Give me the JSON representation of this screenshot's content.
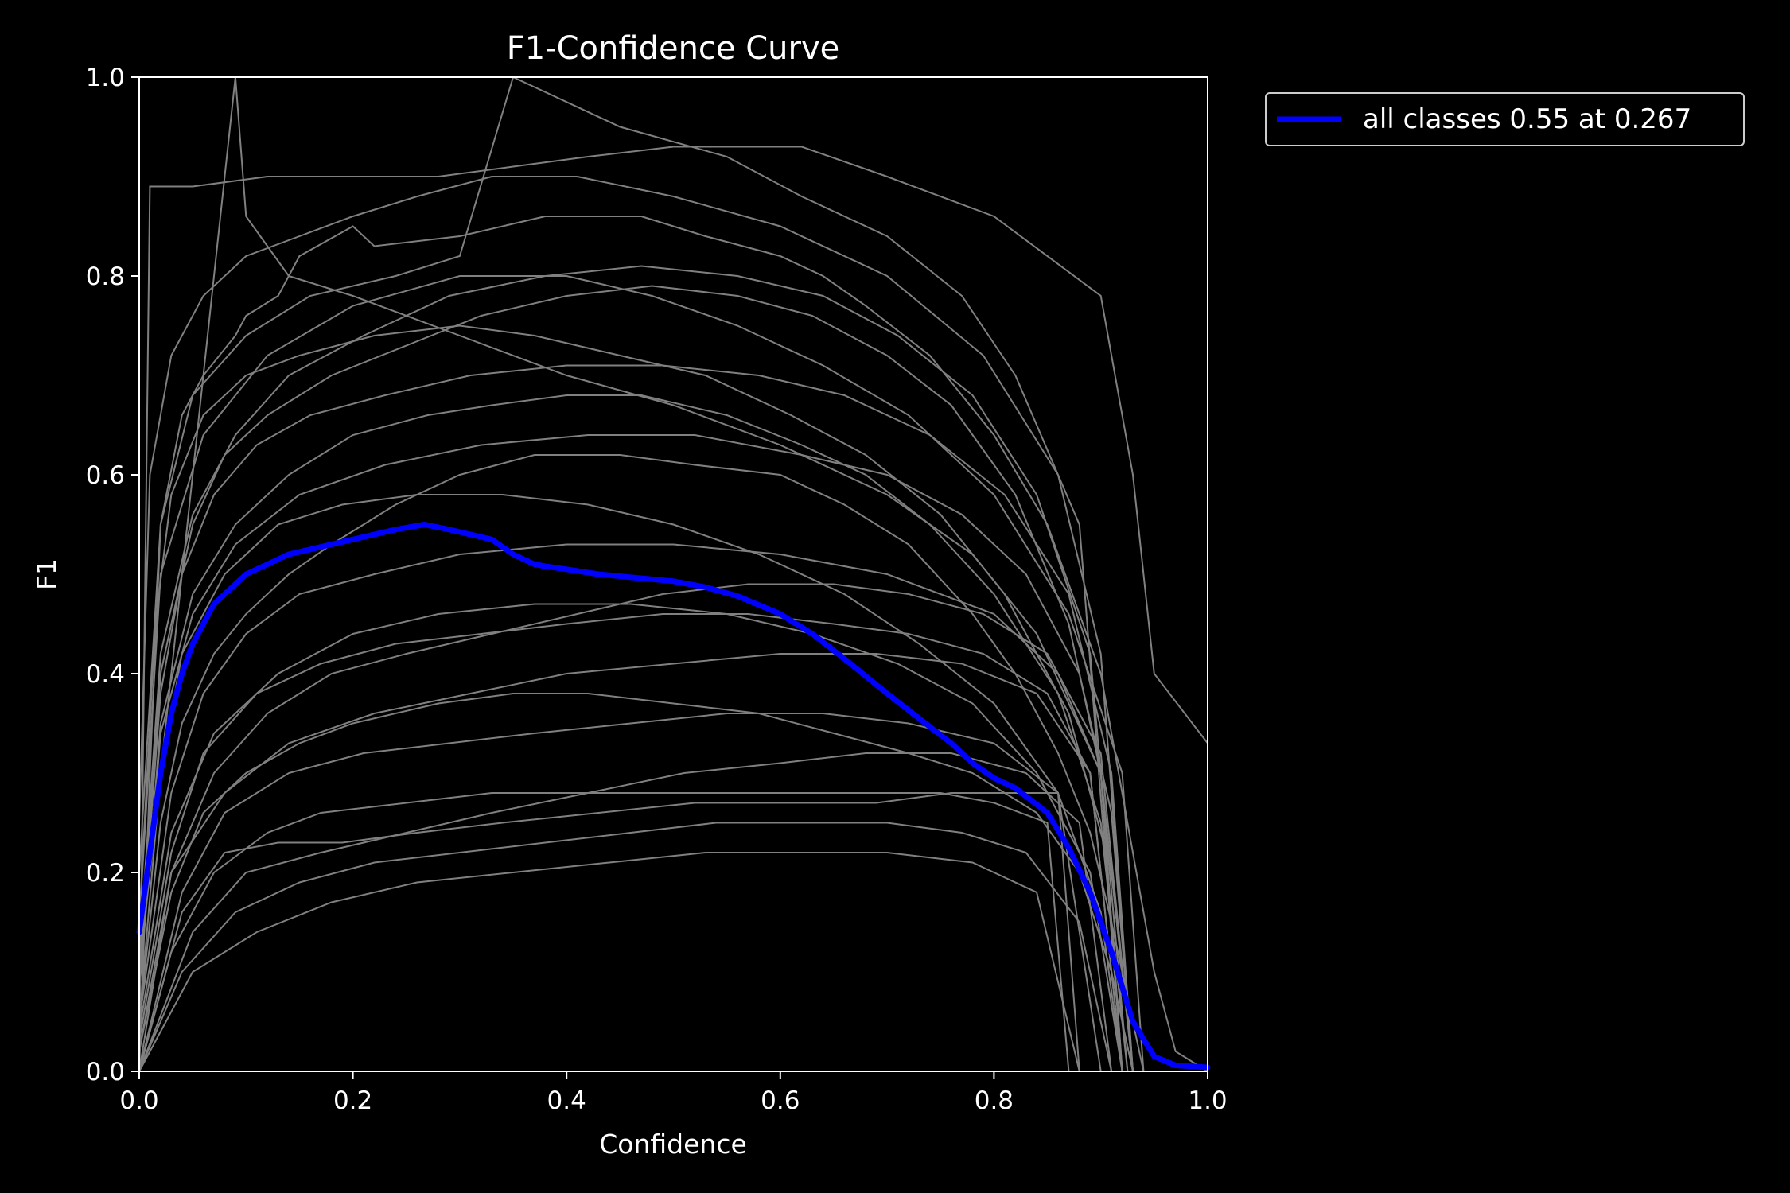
{
  "chart_data": {
    "type": "line",
    "title": "F1-Confidence Curve",
    "xlabel": "Confidence",
    "ylabel": "F1",
    "xlim": [
      0,
      1
    ],
    "ylim": [
      0,
      1
    ],
    "x_ticks": [
      "0.0",
      "0.2",
      "0.4",
      "0.6",
      "0.8",
      "1.0"
    ],
    "y_ticks": [
      "0.0",
      "0.2",
      "0.4",
      "0.6",
      "0.8",
      "1.0"
    ],
    "grid": false,
    "legend_position": "outside-top-right",
    "colors": {
      "background": "#000000",
      "axes": "#ffffff",
      "class_curves": "#808080",
      "all_classes": "#0000ff"
    },
    "series": [
      {
        "name": "all classes 0.55 at 0.267",
        "color": "#0000ff",
        "x": [
          0.0,
          0.01,
          0.02,
          0.03,
          0.04,
          0.05,
          0.06,
          0.07,
          0.08,
          0.09,
          0.1,
          0.12,
          0.14,
          0.16,
          0.18,
          0.2,
          0.22,
          0.24,
          0.267,
          0.29,
          0.31,
          0.33,
          0.35,
          0.37,
          0.38,
          0.4,
          0.43,
          0.46,
          0.5,
          0.53,
          0.56,
          0.6,
          0.63,
          0.66,
          0.7,
          0.73,
          0.76,
          0.78,
          0.8,
          0.82,
          0.85,
          0.87,
          0.89,
          0.91,
          0.93,
          0.95,
          0.97,
          1.0
        ],
        "y": [
          0.14,
          0.22,
          0.3,
          0.36,
          0.4,
          0.43,
          0.45,
          0.47,
          0.48,
          0.49,
          0.5,
          0.51,
          0.52,
          0.525,
          0.53,
          0.535,
          0.54,
          0.545,
          0.55,
          0.545,
          0.54,
          0.535,
          0.52,
          0.51,
          0.508,
          0.505,
          0.5,
          0.497,
          0.493,
          0.487,
          0.478,
          0.46,
          0.44,
          0.415,
          0.38,
          0.355,
          0.33,
          0.31,
          0.295,
          0.285,
          0.26,
          0.225,
          0.18,
          0.12,
          0.05,
          0.015,
          0.006,
          0.004
        ]
      }
    ],
    "class_curves": [
      {
        "x": [
          0.0,
          0.01,
          0.02,
          0.04,
          0.06,
          0.09,
          0.1,
          0.13,
          0.15,
          0.2,
          0.22,
          0.3,
          0.38,
          0.47,
          0.53,
          0.6,
          0.64,
          0.68,
          0.74,
          0.8,
          0.85,
          0.9,
          0.93,
          0.95,
          0.97,
          1.0
        ],
        "y": [
          0.0,
          0.3,
          0.55,
          0.66,
          0.7,
          0.74,
          0.76,
          0.78,
          0.82,
          0.85,
          0.83,
          0.84,
          0.86,
          0.86,
          0.84,
          0.82,
          0.8,
          0.77,
          0.72,
          0.64,
          0.55,
          0.4,
          0.22,
          0.1,
          0.02,
          0.0
        ]
      },
      {
        "x": [
          0.0,
          0.02,
          0.04,
          0.07,
          0.1,
          0.14,
          0.18,
          0.24,
          0.3,
          0.37,
          0.45,
          0.52,
          0.6,
          0.66,
          0.72,
          0.78,
          0.82,
          0.86,
          0.89,
          0.91,
          0.93,
          0.94
        ],
        "y": [
          0.05,
          0.25,
          0.35,
          0.42,
          0.46,
          0.5,
          0.53,
          0.57,
          0.6,
          0.62,
          0.62,
          0.61,
          0.6,
          0.57,
          0.53,
          0.46,
          0.4,
          0.32,
          0.24,
          0.15,
          0.05,
          0.0
        ]
      },
      {
        "x": [
          0.0,
          0.03,
          0.06,
          0.1,
          0.15,
          0.2,
          0.28,
          0.35,
          0.42,
          0.5,
          0.58,
          0.65,
          0.72,
          0.78,
          0.84,
          0.88,
          0.91,
          0.93
        ],
        "y": [
          0.02,
          0.18,
          0.26,
          0.3,
          0.33,
          0.35,
          0.37,
          0.38,
          0.38,
          0.37,
          0.36,
          0.34,
          0.32,
          0.3,
          0.26,
          0.2,
          0.1,
          0.0
        ]
      },
      {
        "x": [
          0.0,
          0.02,
          0.05,
          0.08,
          0.12,
          0.18,
          0.25,
          0.32,
          0.4,
          0.48,
          0.56,
          0.63,
          0.7,
          0.76,
          0.82,
          0.87,
          0.9,
          0.92
        ],
        "y": [
          0.1,
          0.4,
          0.55,
          0.62,
          0.66,
          0.7,
          0.73,
          0.76,
          0.78,
          0.79,
          0.78,
          0.76,
          0.72,
          0.67,
          0.58,
          0.45,
          0.3,
          0.0
        ]
      },
      {
        "x": [
          0.0,
          0.03,
          0.07,
          0.12,
          0.17,
          0.25,
          0.33,
          0.41,
          0.5,
          0.6,
          0.68,
          0.75,
          0.8,
          0.85,
          0.87
        ],
        "y": [
          0.0,
          0.12,
          0.2,
          0.24,
          0.26,
          0.27,
          0.28,
          0.28,
          0.28,
          0.28,
          0.28,
          0.28,
          0.27,
          0.25,
          0.0
        ]
      },
      {
        "x": [
          0.0,
          0.02,
          0.05,
          0.09,
          0.14,
          0.2,
          0.27,
          0.33,
          0.4,
          0.47,
          0.55,
          0.62,
          0.68,
          0.74,
          0.8,
          0.86,
          0.9,
          0.925
        ],
        "y": [
          0.08,
          0.35,
          0.48,
          0.55,
          0.6,
          0.64,
          0.66,
          0.67,
          0.68,
          0.68,
          0.66,
          0.63,
          0.6,
          0.55,
          0.48,
          0.38,
          0.25,
          0.0
        ]
      },
      {
        "x": [
          0.0,
          0.04,
          0.08,
          0.13,
          0.19,
          0.26,
          0.34,
          0.43,
          0.52,
          0.61,
          0.69,
          0.76,
          0.82,
          0.86,
          0.88
        ],
        "y": [
          0.0,
          0.16,
          0.22,
          0.23,
          0.23,
          0.24,
          0.25,
          0.26,
          0.27,
          0.27,
          0.27,
          0.28,
          0.28,
          0.28,
          0.0
        ]
      },
      {
        "x": [
          0.0,
          0.015,
          0.03,
          0.06,
          0.1,
          0.15,
          0.22,
          0.3,
          0.37,
          0.45,
          0.53,
          0.61,
          0.68,
          0.75,
          0.81,
          0.87,
          0.91,
          0.93
        ],
        "y": [
          0.15,
          0.45,
          0.58,
          0.66,
          0.7,
          0.72,
          0.74,
          0.75,
          0.74,
          0.72,
          0.7,
          0.66,
          0.62,
          0.56,
          0.48,
          0.36,
          0.2,
          0.0
        ]
      },
      {
        "x": [
          0.0,
          0.03,
          0.06,
          0.11,
          0.17,
          0.24,
          0.32,
          0.4,
          0.49,
          0.57,
          0.65,
          0.72,
          0.79,
          0.85,
          0.89,
          0.92
        ],
        "y": [
          0.03,
          0.22,
          0.32,
          0.38,
          0.41,
          0.43,
          0.44,
          0.45,
          0.46,
          0.46,
          0.45,
          0.44,
          0.42,
          0.38,
          0.3,
          0.0
        ]
      },
      {
        "x": [
          0.0,
          0.05,
          0.08,
          0.09,
          0.1,
          0.14,
          0.2,
          0.3,
          0.4,
          0.5,
          0.6,
          0.7,
          0.78,
          0.84,
          0.9,
          0.93
        ],
        "y": [
          0.1,
          0.6,
          0.9,
          1.0,
          0.86,
          0.8,
          0.78,
          0.74,
          0.7,
          0.67,
          0.63,
          0.58,
          0.52,
          0.44,
          0.3,
          0.0
        ]
      },
      {
        "x": [
          0.0,
          0.01,
          0.05,
          0.12,
          0.2,
          0.28,
          0.35,
          0.42,
          0.5,
          0.56,
          0.62,
          0.7,
          0.8,
          0.9,
          0.93,
          0.95,
          1.0
        ],
        "y": [
          0.0,
          0.89,
          0.89,
          0.9,
          0.9,
          0.9,
          0.91,
          0.92,
          0.93,
          0.93,
          0.93,
          0.9,
          0.86,
          0.78,
          0.6,
          0.4,
          0.33
        ]
      },
      {
        "x": [
          0.0,
          0.02,
          0.04,
          0.08,
          0.13,
          0.19,
          0.26,
          0.34,
          0.42,
          0.5,
          0.58,
          0.66,
          0.73,
          0.8,
          0.86,
          0.9,
          0.92
        ],
        "y": [
          0.05,
          0.3,
          0.42,
          0.5,
          0.55,
          0.57,
          0.58,
          0.58,
          0.57,
          0.55,
          0.52,
          0.48,
          0.43,
          0.37,
          0.28,
          0.16,
          0.0
        ]
      },
      {
        "x": [
          0.0,
          0.04,
          0.09,
          0.15,
          0.22,
          0.3,
          0.38,
          0.46,
          0.54,
          0.62,
          0.7,
          0.77,
          0.83,
          0.88,
          0.91
        ],
        "y": [
          0.0,
          0.1,
          0.16,
          0.19,
          0.21,
          0.22,
          0.23,
          0.24,
          0.25,
          0.25,
          0.25,
          0.24,
          0.22,
          0.15,
          0.0
        ]
      },
      {
        "x": [
          0.0,
          0.02,
          0.05,
          0.09,
          0.14,
          0.21,
          0.29,
          0.38,
          0.47,
          0.56,
          0.64,
          0.71,
          0.78,
          0.84,
          0.89,
          0.925
        ],
        "y": [
          0.12,
          0.42,
          0.56,
          0.64,
          0.7,
          0.74,
          0.78,
          0.8,
          0.81,
          0.8,
          0.78,
          0.74,
          0.68,
          0.58,
          0.42,
          0.0
        ]
      },
      {
        "x": [
          0.0,
          0.03,
          0.07,
          0.12,
          0.18,
          0.25,
          0.33,
          0.41,
          0.49,
          0.57,
          0.65,
          0.72,
          0.79,
          0.85,
          0.9,
          0.93
        ],
        "y": [
          0.02,
          0.2,
          0.3,
          0.36,
          0.4,
          0.42,
          0.44,
          0.46,
          0.48,
          0.49,
          0.49,
          0.48,
          0.46,
          0.42,
          0.32,
          0.0
        ]
      },
      {
        "x": [
          0.0,
          0.02,
          0.05,
          0.1,
          0.16,
          0.24,
          0.3,
          0.35,
          0.45,
          0.55,
          0.62,
          0.7,
          0.77,
          0.82,
          0.88,
          0.92
        ],
        "y": [
          0.2,
          0.55,
          0.68,
          0.74,
          0.78,
          0.8,
          0.82,
          1.0,
          0.95,
          0.92,
          0.88,
          0.84,
          0.78,
          0.7,
          0.55,
          0.0
        ]
      },
      {
        "x": [
          0.0,
          0.03,
          0.06,
          0.1,
          0.15,
          0.22,
          0.3,
          0.4,
          0.5,
          0.6,
          0.7,
          0.8,
          0.86,
          0.9,
          0.92
        ],
        "y": [
          0.05,
          0.28,
          0.38,
          0.44,
          0.48,
          0.5,
          0.52,
          0.53,
          0.53,
          0.52,
          0.5,
          0.46,
          0.4,
          0.3,
          0.0
        ]
      },
      {
        "x": [
          0.0,
          0.05,
          0.1,
          0.17,
          0.25,
          0.33,
          0.42,
          0.51,
          0.6,
          0.68,
          0.76,
          0.83,
          0.88,
          0.91
        ],
        "y": [
          0.0,
          0.14,
          0.2,
          0.22,
          0.24,
          0.26,
          0.28,
          0.3,
          0.31,
          0.32,
          0.32,
          0.3,
          0.25,
          0.0
        ]
      },
      {
        "x": [
          0.0,
          0.02,
          0.04,
          0.07,
          0.11,
          0.16,
          0.23,
          0.31,
          0.4,
          0.49,
          0.58,
          0.66,
          0.74,
          0.81,
          0.87,
          0.91,
          0.93
        ],
        "y": [
          0.1,
          0.38,
          0.5,
          0.58,
          0.63,
          0.66,
          0.68,
          0.7,
          0.71,
          0.71,
          0.7,
          0.68,
          0.64,
          0.58,
          0.48,
          0.3,
          0.0
        ]
      },
      {
        "x": [
          0.0,
          0.04,
          0.08,
          0.14,
          0.21,
          0.29,
          0.37,
          0.46,
          0.55,
          0.64,
          0.72,
          0.8,
          0.86,
          0.9
        ],
        "y": [
          0.0,
          0.18,
          0.26,
          0.3,
          0.32,
          0.33,
          0.34,
          0.35,
          0.36,
          0.36,
          0.35,
          0.33,
          0.28,
          0.0
        ]
      },
      {
        "x": [
          0.0,
          0.02,
          0.06,
          0.12,
          0.2,
          0.3,
          0.4,
          0.48,
          0.56,
          0.64,
          0.72,
          0.8,
          0.87,
          0.92,
          0.94
        ],
        "y": [
          0.15,
          0.5,
          0.64,
          0.72,
          0.77,
          0.8,
          0.8,
          0.78,
          0.75,
          0.71,
          0.66,
          0.58,
          0.46,
          0.3,
          0.0
        ]
      },
      {
        "x": [
          0.0,
          0.03,
          0.07,
          0.13,
          0.2,
          0.28,
          0.37,
          0.46,
          0.55,
          0.63,
          0.71,
          0.78,
          0.84,
          0.89,
          0.92
        ],
        "y": [
          0.04,
          0.24,
          0.34,
          0.4,
          0.44,
          0.46,
          0.47,
          0.47,
          0.46,
          0.44,
          0.41,
          0.37,
          0.3,
          0.2,
          0.0
        ]
      },
      {
        "x": [
          0.0,
          0.01,
          0.03,
          0.06,
          0.1,
          0.15,
          0.2,
          0.26,
          0.33,
          0.41,
          0.5,
          0.6,
          0.7,
          0.79,
          0.86,
          0.9,
          0.93
        ],
        "y": [
          0.25,
          0.6,
          0.72,
          0.78,
          0.82,
          0.84,
          0.86,
          0.88,
          0.9,
          0.9,
          0.88,
          0.85,
          0.8,
          0.72,
          0.6,
          0.42,
          0.0
        ]
      },
      {
        "x": [
          0.0,
          0.03,
          0.08,
          0.14,
          0.22,
          0.31,
          0.4,
          0.5,
          0.6,
          0.69,
          0.77,
          0.84,
          0.89,
          0.92
        ],
        "y": [
          0.0,
          0.2,
          0.28,
          0.33,
          0.36,
          0.38,
          0.4,
          0.41,
          0.42,
          0.42,
          0.41,
          0.38,
          0.3,
          0.0
        ]
      },
      {
        "x": [
          0.0,
          0.02,
          0.05,
          0.09,
          0.15,
          0.23,
          0.32,
          0.42,
          0.52,
          0.62,
          0.7,
          0.77,
          0.83,
          0.88,
          0.91,
          0.93
        ],
        "y": [
          0.08,
          0.34,
          0.46,
          0.53,
          0.58,
          0.61,
          0.63,
          0.64,
          0.64,
          0.62,
          0.6,
          0.56,
          0.5,
          0.4,
          0.26,
          0.0
        ]
      },
      {
        "x": [
          0.0,
          0.05,
          0.11,
          0.18,
          0.26,
          0.35,
          0.44,
          0.53,
          0.62,
          0.7,
          0.78,
          0.84,
          0.88
        ],
        "y": [
          0.0,
          0.1,
          0.14,
          0.17,
          0.19,
          0.2,
          0.21,
          0.22,
          0.22,
          0.22,
          0.21,
          0.18,
          0.0
        ]
      }
    ]
  }
}
